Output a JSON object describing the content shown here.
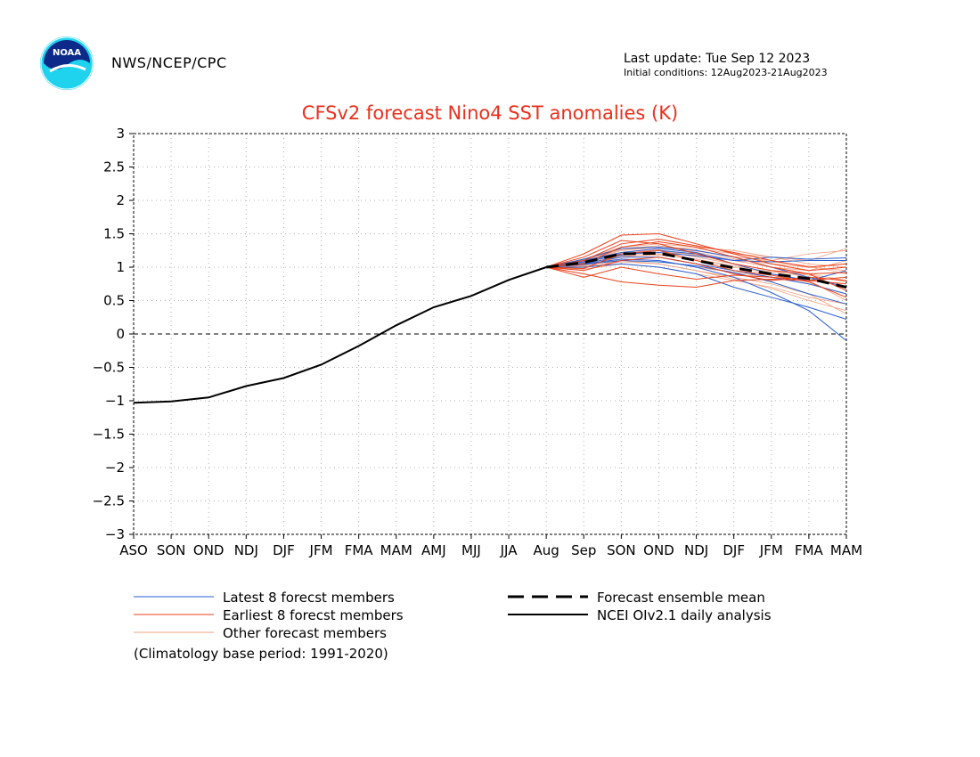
{
  "header": {
    "agency": "NWS/NCEP/CPC",
    "last_update": "Last update: Tue Sep 12 2023",
    "initial_conditions": "Initial conditions: 12Aug2023-21Aug2023",
    "logo_text": "NOAA"
  },
  "footnote": "(Climatology base period: 1991-2020)",
  "colors": {
    "title": "#e8301c",
    "latest": "#2a5fcf",
    "earliest": "#e8401c",
    "other": "#f0a080",
    "analysis": "#000000",
    "grid": "#b0b0b0"
  },
  "chart_data": {
    "type": "line",
    "title": "CFSv2 forecast Nino4 SST anomalies (K)",
    "xlabel": "",
    "ylabel": "",
    "categories": [
      "ASO",
      "SON",
      "OND",
      "NDJ",
      "DJF",
      "JFM",
      "FMA",
      "MAM",
      "AMJ",
      "MJJ",
      "JJA",
      "Aug",
      "Sep",
      "SON",
      "OND",
      "NDJ",
      "DJF",
      "JFM",
      "FMA",
      "MAM"
    ],
    "y_ticks": [
      "3",
      "2.5",
      "2",
      "1.5",
      "1",
      "0.5",
      "0",
      "-0.5",
      "-1",
      "-1.5",
      "-2",
      "-2.5",
      "-3"
    ],
    "ylim": [
      -3,
      3
    ],
    "grid": true,
    "legend_placement": "below",
    "series": [
      {
        "name": "NCEI OIv2.1 daily analysis",
        "style": "solid-black",
        "x": [
          0,
          1,
          2,
          3,
          4,
          5,
          6,
          7,
          8,
          9,
          10,
          11
        ],
        "values": [
          -1.03,
          -1.01,
          -0.95,
          -0.78,
          -0.66,
          -0.46,
          -0.18,
          0.13,
          0.4,
          0.57,
          0.81,
          1.0
        ]
      },
      {
        "name": "Forecast ensemble mean",
        "style": "dashed-black",
        "x": [
          11,
          12,
          13,
          14,
          15,
          16,
          17,
          18,
          19
        ],
        "values": [
          1.0,
          1.07,
          1.2,
          1.21,
          1.1,
          0.99,
          0.9,
          0.83,
          0.7
        ]
      },
      {
        "name": "Latest 8 forecst members",
        "group": "latest",
        "x": [
          11,
          12,
          13,
          14,
          15,
          16,
          17,
          18,
          19
        ],
        "values": [
          1.0,
          1.1,
          1.2,
          1.22,
          1.17,
          1.1,
          1.08,
          1.1,
          1.1
        ]
      },
      {
        "group": "latest",
        "x": [
          11,
          12,
          13,
          14,
          15,
          16,
          17,
          18,
          19
        ],
        "values": [
          1.0,
          1.05,
          1.12,
          1.1,
          1.0,
          0.85,
          0.62,
          0.35,
          -0.1
        ]
      },
      {
        "group": "latest",
        "x": [
          11,
          12,
          13,
          14,
          15,
          16,
          17,
          18,
          19
        ],
        "values": [
          1.0,
          1.08,
          1.18,
          1.25,
          1.2,
          1.1,
          1.15,
          1.12,
          1.14
        ]
      },
      {
        "group": "latest",
        "x": [
          11,
          12,
          13,
          14,
          15,
          16,
          17,
          18,
          19
        ],
        "values": [
          1.0,
          1.0,
          1.05,
          1.0,
          0.9,
          0.7,
          0.55,
          0.4,
          0.22
        ]
      },
      {
        "group": "latest",
        "x": [
          11,
          12,
          13,
          14,
          15,
          16,
          17,
          18,
          19
        ],
        "values": [
          1.0,
          1.12,
          1.28,
          1.3,
          1.25,
          1.15,
          1.0,
          0.85,
          0.7
        ]
      },
      {
        "group": "latest",
        "x": [
          11,
          12,
          13,
          14,
          15,
          16,
          17,
          18,
          19
        ],
        "values": [
          1.0,
          1.06,
          1.15,
          1.15,
          1.05,
          0.95,
          0.85,
          0.75,
          0.6
        ]
      },
      {
        "group": "latest",
        "x": [
          11,
          12,
          13,
          14,
          15,
          16,
          17,
          18,
          19
        ],
        "values": [
          1.0,
          1.1,
          1.22,
          1.28,
          1.22,
          1.05,
          0.9,
          0.8,
          0.95
        ]
      },
      {
        "group": "latest",
        "x": [
          11,
          12,
          13,
          14,
          15,
          16,
          17,
          18,
          19
        ],
        "values": [
          1.0,
          1.04,
          1.1,
          1.08,
          1.02,
          0.92,
          0.78,
          0.6,
          0.45
        ]
      },
      {
        "name": "Earliest 8 forecst members",
        "group": "earliest",
        "x": [
          11,
          12,
          13,
          14,
          15,
          16,
          17,
          18,
          19
        ],
        "values": [
          1.0,
          1.2,
          1.48,
          1.5,
          1.35,
          1.2,
          1.05,
          0.95,
          1.0
        ]
      },
      {
        "group": "earliest",
        "x": [
          11,
          12,
          13,
          14,
          15,
          16,
          17,
          18,
          19
        ],
        "values": [
          1.0,
          0.85,
          1.0,
          0.9,
          0.82,
          0.88,
          0.85,
          0.8,
          0.85
        ]
      },
      {
        "group": "earliest",
        "x": [
          11,
          12,
          13,
          14,
          15,
          16,
          17,
          18,
          19
        ],
        "values": [
          1.0,
          0.9,
          0.78,
          0.73,
          0.7,
          0.8,
          0.82,
          0.8,
          0.75
        ]
      },
      {
        "group": "earliest",
        "x": [
          11,
          12,
          13,
          14,
          15,
          16,
          17,
          18,
          19
        ],
        "values": [
          1.0,
          1.15,
          1.4,
          1.35,
          1.2,
          1.05,
          0.95,
          0.9,
          0.92
        ]
      },
      {
        "group": "earliest",
        "x": [
          11,
          12,
          13,
          14,
          15,
          16,
          17,
          18,
          19
        ],
        "values": [
          1.0,
          1.05,
          1.3,
          1.38,
          1.3,
          1.15,
          1.0,
          0.9,
          0.65
        ]
      },
      {
        "group": "earliest",
        "x": [
          11,
          12,
          13,
          14,
          15,
          16,
          17,
          18,
          19
        ],
        "values": [
          1.0,
          0.95,
          1.1,
          1.15,
          1.05,
          0.9,
          0.8,
          0.85,
          0.8
        ]
      },
      {
        "group": "earliest",
        "x": [
          11,
          12,
          13,
          14,
          15,
          16,
          17,
          18,
          19
        ],
        "values": [
          1.0,
          1.1,
          1.35,
          1.42,
          1.32,
          1.22,
          1.1,
          1.0,
          1.05
        ]
      },
      {
        "group": "earliest",
        "x": [
          11,
          12,
          13,
          14,
          15,
          16,
          17,
          18,
          19
        ],
        "values": [
          1.0,
          0.98,
          1.2,
          1.25,
          1.1,
          0.95,
          0.88,
          0.78,
          0.55
        ]
      },
      {
        "name": "Other forecast members",
        "group": "other",
        "x": [
          11,
          12,
          13,
          14,
          15,
          16,
          17,
          18,
          19
        ],
        "values": [
          1.0,
          1.08,
          1.25,
          1.3,
          1.28,
          1.2,
          1.15,
          1.1,
          1.28
        ]
      },
      {
        "group": "other",
        "x": [
          11,
          12,
          13,
          14,
          15,
          16,
          17,
          18,
          19
        ],
        "values": [
          1.0,
          1.02,
          1.15,
          1.2,
          1.1,
          1.0,
          0.9,
          0.8,
          0.5
        ]
      },
      {
        "group": "other",
        "x": [
          11,
          12,
          13,
          14,
          15,
          16,
          17,
          18,
          19
        ],
        "values": [
          1.0,
          1.12,
          1.3,
          1.35,
          1.3,
          1.25,
          1.15,
          1.05,
          1.0
        ]
      },
      {
        "group": "other",
        "x": [
          11,
          12,
          13,
          14,
          15,
          16,
          17,
          18,
          19
        ],
        "values": [
          1.0,
          1.0,
          1.1,
          1.05,
          0.95,
          0.85,
          0.75,
          0.6,
          0.3
        ]
      },
      {
        "group": "other",
        "x": [
          11,
          12,
          13,
          14,
          15,
          16,
          17,
          18,
          19
        ],
        "values": [
          1.0,
          1.06,
          1.2,
          1.25,
          1.15,
          1.05,
          0.95,
          0.85,
          0.7
        ]
      },
      {
        "group": "other",
        "x": [
          11,
          12,
          13,
          14,
          15,
          16,
          17,
          18,
          19
        ],
        "values": [
          1.0,
          1.1,
          1.28,
          1.32,
          1.25,
          1.15,
          1.1,
          1.2,
          1.25
        ]
      },
      {
        "group": "other",
        "x": [
          11,
          12,
          13,
          14,
          15,
          16,
          17,
          18,
          19
        ],
        "values": [
          1.0,
          0.97,
          1.05,
          1.0,
          0.9,
          0.8,
          0.7,
          0.55,
          0.45
        ]
      },
      {
        "group": "other",
        "x": [
          11,
          12,
          13,
          14,
          15,
          16,
          17,
          18,
          19
        ],
        "values": [
          1.0,
          1.04,
          1.18,
          1.22,
          1.2,
          1.1,
          1.0,
          0.9,
          0.8
        ]
      },
      {
        "group": "other",
        "x": [
          11,
          12,
          13,
          14,
          15,
          16,
          17,
          18,
          19
        ],
        "values": [
          1.0,
          1.09,
          1.22,
          1.28,
          1.22,
          1.12,
          1.05,
          1.0,
          0.95
        ]
      },
      {
        "group": "other",
        "x": [
          11,
          12,
          13,
          14,
          15,
          16,
          17,
          18,
          19
        ],
        "values": [
          1.0,
          1.03,
          1.12,
          1.1,
          1.0,
          0.92,
          0.85,
          0.75,
          0.6
        ]
      },
      {
        "group": "other",
        "x": [
          11,
          12,
          13,
          14,
          15,
          16,
          17,
          18,
          19
        ],
        "values": [
          1.0,
          1.07,
          1.22,
          1.26,
          1.18,
          1.1,
          1.0,
          0.95,
          1.1
        ]
      },
      {
        "group": "other",
        "x": [
          11,
          12,
          13,
          14,
          15,
          16,
          17,
          18,
          19
        ],
        "values": [
          1.0,
          1.01,
          1.08,
          1.05,
          0.95,
          0.82,
          0.68,
          0.5,
          0.35
        ]
      },
      {
        "group": "other",
        "x": [
          11,
          12,
          13,
          14,
          15,
          16,
          17,
          18,
          19
        ],
        "values": [
          1.0,
          1.11,
          1.26,
          1.3,
          1.24,
          1.16,
          1.08,
          1.02,
          0.9
        ]
      },
      {
        "group": "other",
        "x": [
          11,
          12,
          13,
          14,
          15,
          16,
          17,
          18,
          19
        ],
        "values": [
          1.0,
          1.05,
          1.17,
          1.18,
          1.12,
          1.02,
          0.93,
          0.88,
          0.78
        ]
      }
    ],
    "legend": [
      {
        "label": "Latest 8 forecst members",
        "style": "latest"
      },
      {
        "label": "Earliest 8 forecst members",
        "style": "earliest"
      },
      {
        "label": "Other forecast members",
        "style": "other"
      },
      {
        "label": "Forecast ensemble mean",
        "style": "dashed-black"
      },
      {
        "label": "NCEI OIv2.1 daily analysis",
        "style": "solid-black"
      }
    ]
  }
}
